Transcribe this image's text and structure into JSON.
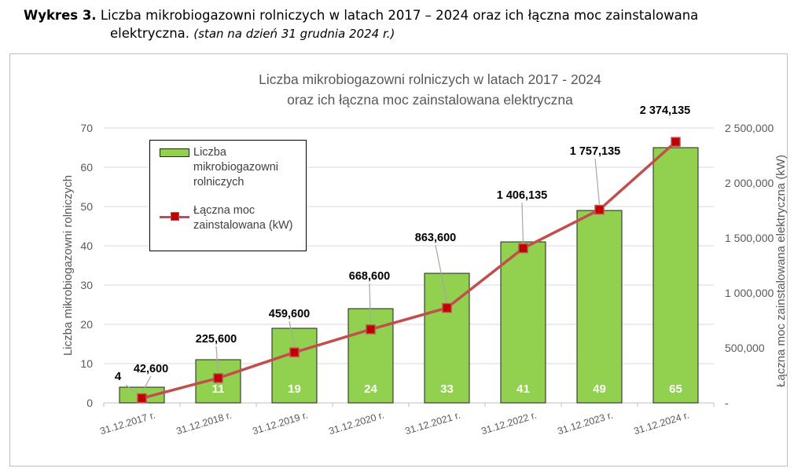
{
  "caption": {
    "lead": "Wykres 3.",
    "text1": "Liczba mikrobiogazowni rolniczych w latach 2017 – 2024 oraz ich łączna moc zainstalowana",
    "text2": "elektryczna.",
    "note": "(stan na dzień 31 grudnia 2024 r.)"
  },
  "colors": {
    "bar": "#92d050",
    "line": "#c0504d",
    "marker": "#c00000",
    "bar_label": "#ffffff"
  },
  "chart_data": {
    "type": "bar",
    "title": [
      "Liczba mikrobiogazowni rolniczych w latach 2017 - 2024",
      "oraz ich łączna moc zainstalowana elektryczna"
    ],
    "categories": [
      "31.12.2017 r.",
      "31.12.2018 r.",
      "31.12.2019 r.",
      "31.12.2020 r.",
      "31.12.2021 r.",
      "31.12.2022 r.",
      "31.12.2023 r.",
      "31.12.2024 r."
    ],
    "ylabel": "Liczba mikrobiogazowni rolniczych",
    "y2label": "Łączna moc zainstalowana elektryczna (kW)",
    "ylim": [
      0,
      70
    ],
    "y2lim": [
      0,
      2500000
    ],
    "yticks": [
      "0",
      "10",
      "20",
      "30",
      "40",
      "50",
      "60",
      "70"
    ],
    "y2ticks": [
      "-",
      "500,000",
      "1 000,000",
      "1 500,000",
      "2 000,000",
      "2 500,000"
    ],
    "grid": true,
    "legend_position": "top-left",
    "series": [
      {
        "name": "Liczba mikrobiogazowni rolniczych",
        "type": "bar",
        "axis": "left",
        "values": [
          4,
          11,
          19,
          24,
          33,
          41,
          49,
          65
        ],
        "labels": [
          "4",
          "11",
          "19",
          "24",
          "33",
          "41",
          "49",
          "65"
        ]
      },
      {
        "name": "Łączna moc zainstalowana (kW)",
        "type": "line",
        "axis": "right",
        "values": [
          42600,
          225600,
          459600,
          668600,
          863600,
          1406135,
          1757135,
          2374135
        ],
        "labels": [
          "42,600",
          "225,600",
          "459,600",
          "668,600",
          "863,600",
          "1 406,135",
          "1 757,135",
          "2 374,135"
        ]
      }
    ]
  }
}
